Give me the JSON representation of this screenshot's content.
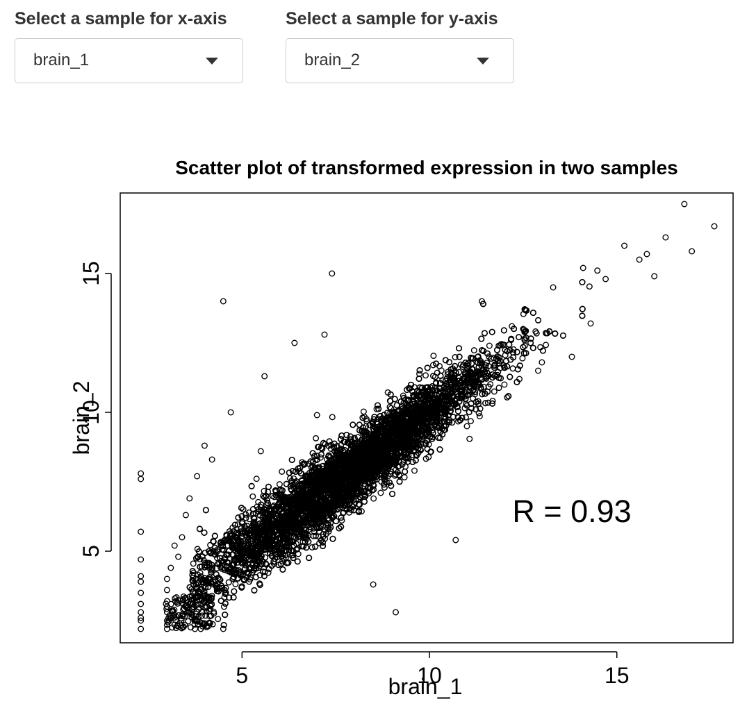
{
  "controls": {
    "x_select": {
      "label": "Select a sample for x-axis",
      "value": "brain_1"
    },
    "y_select": {
      "label": "Select a sample for y-axis",
      "value": "brain_2"
    }
  },
  "icons": {
    "dropdown": "caret-down-icon"
  },
  "chart_data": {
    "type": "scatter",
    "title": "Scatter plot of transformed expression in two samples",
    "xlabel": "brain_1",
    "ylabel": "brain_2",
    "xlim": [
      1.75,
      18.1
    ],
    "ylim": [
      1.7,
      17.9
    ],
    "xticks": [
      5,
      10,
      15
    ],
    "yticks": [
      5,
      10,
      15
    ],
    "grid": false,
    "annotation": {
      "text": "R = 0.93",
      "x": 13.8,
      "y": 6.05
    },
    "marker_color": "#000000",
    "points_note_sample": "representative sample of the many overlapping points",
    "x": [
      2.3,
      2.3,
      2.3,
      2.3,
      2.3,
      2.3,
      2.3,
      2.3,
      2.3,
      2.3,
      2.3,
      2.3,
      3.0,
      3.0,
      3.0,
      3.0,
      3.0,
      3.0,
      3.1,
      3.2,
      3.3,
      3.4,
      3.5,
      3.6,
      3.8,
      4.0,
      4.2,
      4.5,
      4.7,
      5.0,
      3.9,
      4.1,
      3.8,
      3.7,
      4.0,
      4.5,
      5.2,
      5.6,
      6.4,
      7.4,
      8.0,
      8.8,
      9.1,
      10.7,
      11.4,
      12.5,
      13.3,
      14.1,
      15.2,
      15.8,
      16.3,
      16.8,
      17.0,
      17.6,
      14.7,
      15.6,
      13.8,
      12.9,
      12.0,
      11.0,
      8.7,
      9.9,
      8.5,
      6.5,
      7.2,
      9.6,
      10.3,
      11.3,
      12.4,
      13.0,
      14.3,
      16.0,
      4.8,
      5.4,
      6.0,
      7.9,
      5.5,
      7.0,
      8.2,
      9.3,
      10.1,
      11.6,
      12.2,
      6.8,
      7.6,
      8.9
    ],
    "y": [
      2.2,
      2.5,
      2.8,
      3.1,
      3.5,
      3.9,
      4.7,
      5.7,
      7.6,
      7.8,
      4.1,
      2.6,
      2.2,
      2.5,
      2.8,
      3.2,
      3.6,
      4.0,
      4.4,
      5.2,
      4.8,
      5.5,
      6.3,
      6.9,
      7.7,
      8.8,
      8.3,
      14.0,
      10.0,
      6.0,
      2.2,
      2.3,
      2.5,
      3.0,
      3.4,
      2.2,
      5.0,
      11.3,
      12.5,
      15.0,
      8.5,
      7.6,
      2.8,
      5.4,
      14.0,
      13.0,
      14.5,
      15.2,
      16.0,
      15.7,
      16.3,
      17.5,
      15.8,
      16.7,
      14.8,
      15.5,
      12.0,
      11.5,
      11.0,
      9.5,
      7.1,
      8.9,
      3.8,
      4.9,
      12.8,
      7.9,
      9.3,
      10.4,
      11.2,
      11.8,
      13.2,
      14.9,
      4.3,
      6.6,
      7.2,
      8.1,
      8.6,
      9.9,
      9.0,
      10.6,
      11.7,
      12.4,
      13.1,
      6.3,
      7.6,
      8.4
    ]
  }
}
